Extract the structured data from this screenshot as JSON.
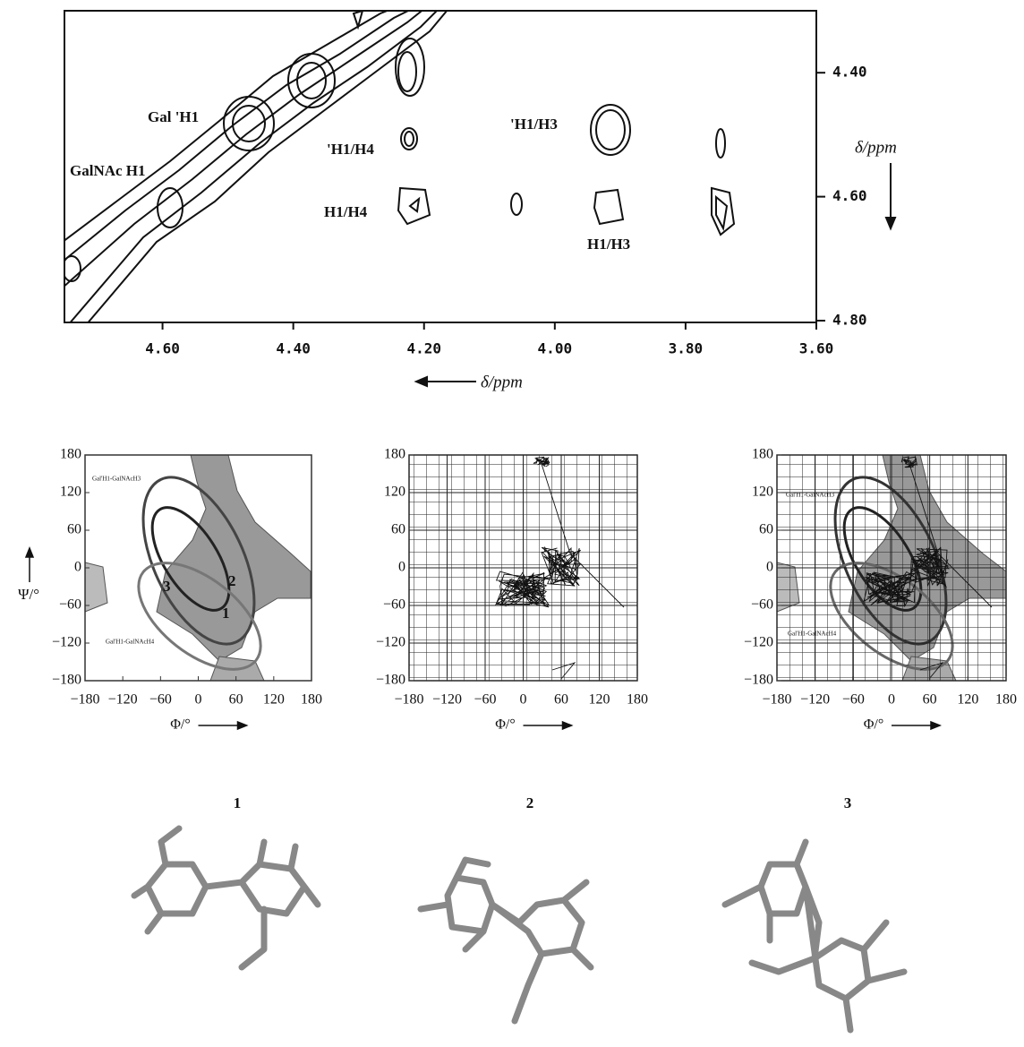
{
  "spectrum": {
    "xlabel": "δ/ppm",
    "ylabel": "δ/ppm",
    "xlim": [
      4.75,
      3.6
    ],
    "ylim": [
      4.3,
      4.8
    ],
    "xticks": [
      {
        "value": 4.6,
        "label": "4.60"
      },
      {
        "value": 4.4,
        "label": "4.40"
      },
      {
        "value": 4.2,
        "label": "4.20"
      },
      {
        "value": 4.0,
        "label": "4.00"
      },
      {
        "value": 3.8,
        "label": "3.80"
      },
      {
        "value": 3.6,
        "label": "3.60"
      }
    ],
    "yticks": [
      {
        "value": 4.4,
        "label": "4.40"
      },
      {
        "value": 4.6,
        "label": "4.60"
      },
      {
        "value": 4.8,
        "label": "4.80"
      }
    ],
    "annotations": [
      "Gal 'H1",
      "GalNAc H1",
      "'H1/H4",
      "H1/H4",
      "'H1/H3",
      "H1/H3"
    ]
  },
  "maps": [
    {
      "xlabel": "Φ/°",
      "ylabel": "Ψ/°",
      "xlim": [
        -180,
        180
      ],
      "ylim": [
        -180,
        180
      ],
      "xticks": [
        {
          "value": -180,
          "label": "−180"
        },
        {
          "value": -120,
          "label": "−120"
        },
        {
          "value": -60,
          "label": "−60"
        },
        0,
        60,
        120,
        180
      ],
      "yticks": [
        {
          "value": -180,
          "label": "−180"
        },
        {
          "value": -120,
          "label": "−120"
        },
        {
          "value": -60,
          "label": "−60"
        },
        0,
        60,
        120,
        180
      ],
      "labels": [
        "Gal'H1-GalNAcH3",
        "Gal'H1-GalNAcH4"
      ],
      "regions": [
        "3",
        "2",
        "1"
      ]
    },
    {
      "xlabel": "Φ/°",
      "xlim": [
        -180,
        180
      ],
      "ylim": [
        -180,
        180
      ],
      "xticks": [
        {
          "value": -180,
          "label": "−180"
        },
        {
          "value": -120,
          "label": "−120"
        },
        {
          "value": -60,
          "label": "−60"
        },
        0,
        60,
        120,
        180
      ],
      "yticks": [
        {
          "value": -180,
          "label": "−180"
        },
        {
          "value": -120,
          "label": "−120"
        },
        {
          "value": -60,
          "label": "−60"
        },
        0,
        60,
        120,
        180
      ],
      "grid": true
    },
    {
      "xlabel": "Φ/°",
      "xlim": [
        -180,
        180
      ],
      "ylim": [
        -180,
        180
      ],
      "xticks": [
        {
          "value": -180,
          "label": "−180"
        },
        {
          "value": -120,
          "label": "−120"
        },
        {
          "value": -60,
          "label": "−60"
        },
        0,
        60,
        120,
        180
      ],
      "yticks": [
        {
          "value": -180,
          "label": "−180"
        },
        {
          "value": -120,
          "label": "−120"
        },
        {
          "value": -60,
          "label": "−60"
        },
        0,
        60,
        120,
        180
      ],
      "labels": [
        "Gal'H1-GalNAcH3",
        "Gal'H1-GalNAcH4"
      ],
      "grid": true
    }
  ],
  "structures": [
    "1",
    "2",
    "3"
  ]
}
